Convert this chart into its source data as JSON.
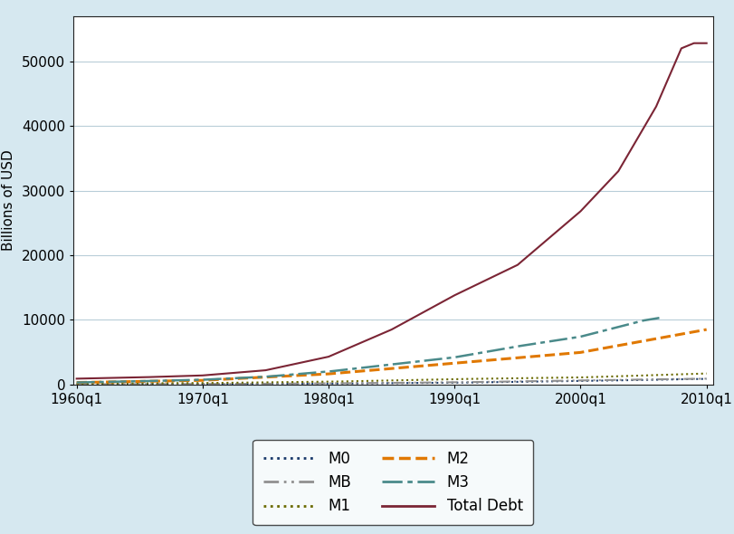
{
  "title": "",
  "ylabel": "Billions of USD",
  "xlabel": "",
  "background_color": "#d6e8f0",
  "plot_background_color": "#ffffff",
  "xlim_start": 1959.75,
  "xlim_end": 2010.5,
  "ylim": [
    0,
    57000
  ],
  "yticks": [
    0,
    10000,
    20000,
    30000,
    40000,
    50000
  ],
  "xticks": [
    1960,
    1970,
    1980,
    1990,
    2000,
    2010
  ],
  "xtick_labels": [
    "1960q1",
    "1970q1",
    "1980q1",
    "1990q1",
    "2000q1",
    "2010q1"
  ],
  "series": {
    "M0": {
      "color": "#1a3a6b",
      "linestyle": "dotted",
      "linewidth": 1.5
    },
    "MB": {
      "color": "#909090",
      "linewidth": 1.5
    },
    "M1": {
      "color": "#6b6b00",
      "linestyle": "dotted",
      "linewidth": 1.5
    },
    "M2": {
      "color": "#e07800",
      "linestyle": "dashed",
      "linewidth": 2.2
    },
    "M3": {
      "color": "#4a8a8a",
      "linewidth": 1.8
    },
    "Total Debt": {
      "color": "#7b2535",
      "linestyle": "solid",
      "linewidth": 1.5
    }
  }
}
